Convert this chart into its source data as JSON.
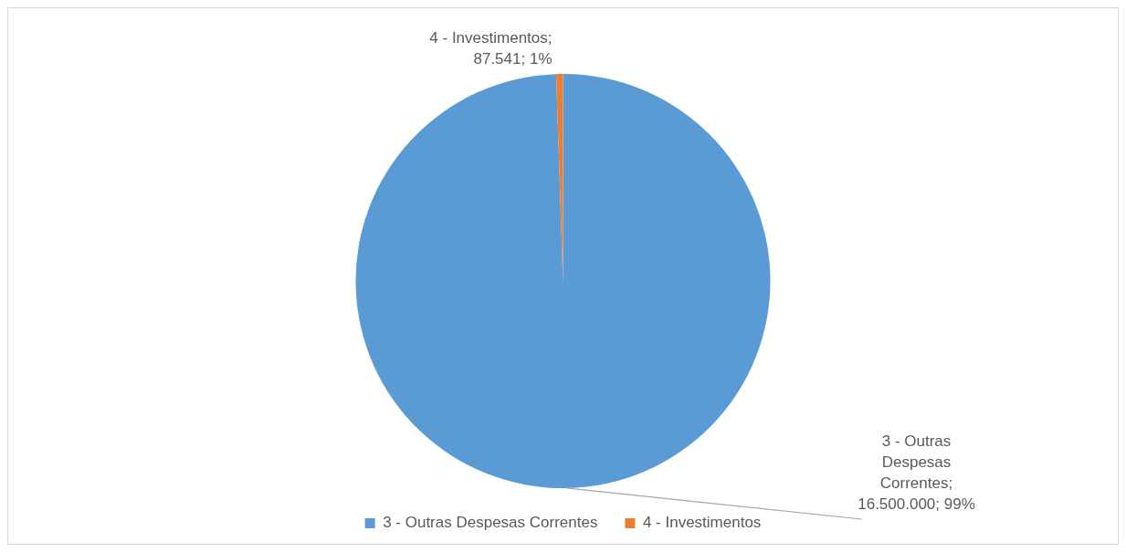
{
  "chart_data": {
    "type": "pie",
    "categories": [
      "3 - Outras Despesas Correntes",
      "4 - Investimentos"
    ],
    "values": [
      16500000,
      87541
    ],
    "colors": [
      "#5b9bd5",
      "#ed7d31"
    ],
    "value_labels": [
      "3 - Outras Despesas Correntes; 16.500.000; 99%",
      "4 - Investimentos; 87.541; 1%"
    ],
    "legend": "bottom"
  }
}
